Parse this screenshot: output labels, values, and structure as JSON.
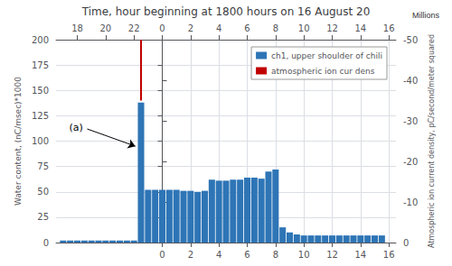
{
  "chart_data": {
    "type": "bar",
    "title": "Time, hour beginning at 1800 hours on 16 August 20",
    "y_label": "Water content, (nC/msec)*1000",
    "y2_label": "Atmospheric ion current density, pC/second/meter squared",
    "x": [
      -7,
      -6.5,
      -6,
      -5.5,
      -5,
      -4.5,
      -4,
      -3.5,
      -3,
      -2.5,
      -2,
      -1.5,
      -1,
      -0.5,
      0,
      0.5,
      1,
      1.5,
      2,
      2.5,
      3,
      3.5,
      4,
      4.5,
      5,
      5.5,
      6,
      6.5,
      7,
      7.5,
      8,
      8.5,
      9,
      9.5,
      10,
      10.5,
      11,
      11.5,
      12,
      12.5,
      13,
      13.5,
      14,
      14.5,
      15,
      15.5
    ],
    "series": [
      {
        "name": "ch1, upper shoulder of chili",
        "type": "bar",
        "color": "#2E75B6",
        "values": [
          2,
          2,
          2,
          2,
          2,
          2,
          2,
          2,
          2,
          2,
          2,
          138,
          52,
          52,
          52,
          52,
          52,
          51,
          51,
          50,
          51,
          62,
          61,
          61,
          62,
          62,
          64,
          64,
          63,
          70,
          72,
          15,
          10,
          8,
          7,
          7,
          7,
          7,
          7,
          7,
          7,
          7,
          7,
          7,
          7,
          7
        ]
      },
      {
        "name": "atmospheric ion cur dens",
        "type": "line",
        "color": "#C00000",
        "x": [
          -1.5,
          -1.5
        ],
        "values": [
          140,
          200
        ]
      }
    ],
    "xlim": [
      -7.5,
      16.5
    ],
    "xticks": [
      0,
      2,
      4,
      6,
      8,
      10,
      12,
      14,
      16
    ],
    "x2ticks": [
      {
        "value": -6,
        "label": "18"
      },
      {
        "value": -4,
        "label": "20"
      },
      {
        "value": -2,
        "label": "22"
      },
      0,
      2,
      4,
      6,
      8,
      10,
      12,
      14,
      16
    ],
    "ylim": [
      0,
      200
    ],
    "yticks": [
      0,
      25,
      50,
      75,
      100,
      125,
      150,
      175,
      200
    ],
    "y2lim": [
      0,
      -50
    ],
    "y2ticks": [
      0,
      -10,
      -20,
      -30,
      -40,
      -50
    ],
    "grid": true,
    "legend": "upper right",
    "annotations": [
      {
        "text": "(a)",
        "x": -5.3,
        "y": 112,
        "arrow_to": [
          -1.9,
          95
        ]
      },
      {
        "text": "Millions",
        "axis": "y2"
      }
    ]
  }
}
